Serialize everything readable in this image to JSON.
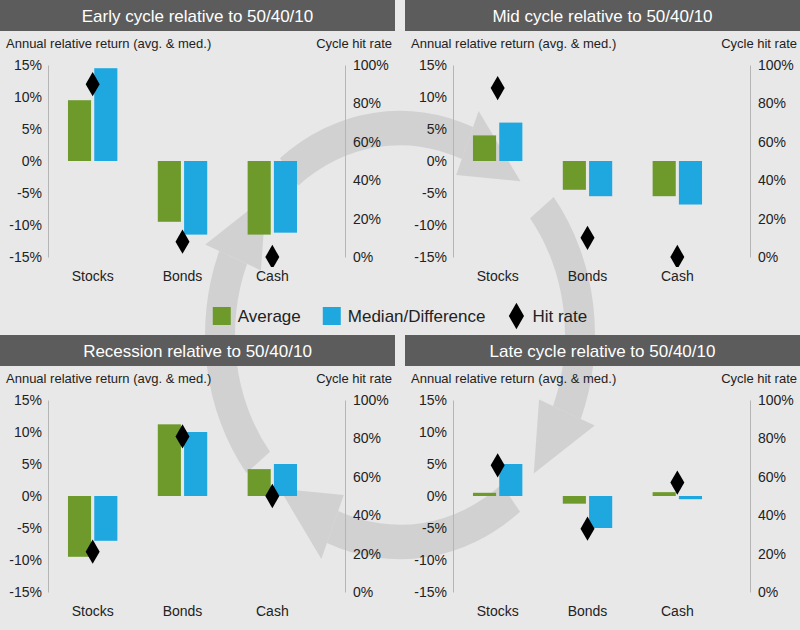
{
  "chart_data": [
    {
      "type": "bar",
      "title": "Early cycle relative to 50/40/10",
      "y_label": "Annual relative return (avg. & med.)",
      "y2_label": "Cycle hit rate",
      "categories": [
        "Stocks",
        "Bonds",
        "Cash"
      ],
      "series": [
        {
          "name": "Average",
          "color": "#6e9a2c",
          "values": [
            9.5,
            -9.5,
            -11.5
          ]
        },
        {
          "name": "Median/Difference",
          "color": "#1fa8e0",
          "values": [
            14.5,
            -11.5,
            -11.2
          ]
        },
        {
          "name": "Hit rate",
          "type": "scatter",
          "marker": "diamond",
          "axis": "y2",
          "color": "#000000",
          "values": [
            90,
            8,
            0
          ]
        }
      ],
      "ylim": [
        -15,
        15
      ],
      "yticks": [
        {
          "value": -15,
          "label": "-15%"
        },
        {
          "value": -10,
          "label": "-10%"
        },
        {
          "value": -5,
          "label": "-5%"
        },
        {
          "value": 0,
          "label": "0%"
        },
        {
          "value": 5,
          "label": "5%"
        },
        {
          "value": 10,
          "label": "10%"
        },
        {
          "value": 15,
          "label": "15%"
        }
      ],
      "y2lim": [
        0,
        100
      ],
      "y2ticks": [
        {
          "value": 0,
          "label": "0%"
        },
        {
          "value": 20,
          "label": "20%"
        },
        {
          "value": 40,
          "label": "40%"
        },
        {
          "value": 60,
          "label": "60%"
        },
        {
          "value": 80,
          "label": "80%"
        },
        {
          "value": 100,
          "label": "100%"
        }
      ]
    },
    {
      "type": "bar",
      "title": "Mid cycle relative to 50/40/10",
      "y_label": "Annual relative return (avg. & med.)",
      "y2_label": "Cycle hit rate",
      "categories": [
        "Stocks",
        "Bonds",
        "Cash"
      ],
      "series": [
        {
          "name": "Average",
          "color": "#6e9a2c",
          "values": [
            4.0,
            -4.5,
            -5.5
          ]
        },
        {
          "name": "Median/Difference",
          "color": "#1fa8e0",
          "values": [
            6.0,
            -5.5,
            -6.8
          ]
        },
        {
          "name": "Hit rate",
          "type": "scatter",
          "marker": "diamond",
          "axis": "y2",
          "color": "#000000",
          "values": [
            88,
            10,
            0
          ]
        }
      ],
      "ylim": [
        -15,
        15
      ],
      "yticks": [
        {
          "value": -15,
          "label": "-15%"
        },
        {
          "value": -10,
          "label": "-10%"
        },
        {
          "value": -5,
          "label": "-5%"
        },
        {
          "value": 0,
          "label": "0%"
        },
        {
          "value": 5,
          "label": "5%"
        },
        {
          "value": 10,
          "label": "10%"
        },
        {
          "value": 15,
          "label": "15%"
        }
      ],
      "y2lim": [
        0,
        100
      ],
      "y2ticks": [
        {
          "value": 0,
          "label": "0%"
        },
        {
          "value": 20,
          "label": "20%"
        },
        {
          "value": 40,
          "label": "40%"
        },
        {
          "value": 60,
          "label": "60%"
        },
        {
          "value": 80,
          "label": "80%"
        },
        {
          "value": 100,
          "label": "100%"
        }
      ]
    },
    {
      "type": "bar",
      "title": "Recession relative to 50/40/10",
      "y_label": "Annual relative return (avg. & med.)",
      "y2_label": "Cycle hit rate",
      "categories": [
        "Stocks",
        "Bonds",
        "Cash"
      ],
      "series": [
        {
          "name": "Average",
          "color": "#6e9a2c",
          "values": [
            -9.5,
            11.2,
            4.2
          ]
        },
        {
          "name": "Median/Difference",
          "color": "#1fa8e0",
          "values": [
            -7.0,
            10.0,
            5.0
          ]
        },
        {
          "name": "Hit rate",
          "type": "scatter",
          "marker": "diamond",
          "axis": "y2",
          "color": "#000000",
          "values": [
            21,
            81,
            50
          ]
        }
      ],
      "ylim": [
        -15,
        15
      ],
      "yticks": [
        {
          "value": -15,
          "label": "-15%"
        },
        {
          "value": -10,
          "label": "-10%"
        },
        {
          "value": -5,
          "label": "-5%"
        },
        {
          "value": 0,
          "label": "0%"
        },
        {
          "value": 5,
          "label": "5%"
        },
        {
          "value": 10,
          "label": "10%"
        },
        {
          "value": 15,
          "label": "15%"
        }
      ],
      "y2lim": [
        0,
        100
      ],
      "y2ticks": [
        {
          "value": 0,
          "label": "0%"
        },
        {
          "value": 20,
          "label": "20%"
        },
        {
          "value": 40,
          "label": "40%"
        },
        {
          "value": 60,
          "label": "60%"
        },
        {
          "value": 80,
          "label": "80%"
        },
        {
          "value": 100,
          "label": "100%"
        }
      ]
    },
    {
      "type": "bar",
      "title": "Late cycle relative to 50/40/10",
      "y_label": "Annual relative return (avg. & med.)",
      "y2_label": "Cycle hit rate",
      "categories": [
        "Stocks",
        "Bonds",
        "Cash"
      ],
      "series": [
        {
          "name": "Average",
          "color": "#6e9a2c",
          "values": [
            0.5,
            -1.2,
            0.6
          ]
        },
        {
          "name": "Median/Difference",
          "color": "#1fa8e0",
          "values": [
            5.0,
            -5.0,
            -0.5
          ]
        },
        {
          "name": "Hit rate",
          "type": "scatter",
          "marker": "diamond",
          "axis": "y2",
          "color": "#000000",
          "values": [
            66,
            33,
            57
          ]
        }
      ],
      "ylim": [
        -15,
        15
      ],
      "yticks": [
        {
          "value": -15,
          "label": "-15%"
        },
        {
          "value": -10,
          "label": "-10%"
        },
        {
          "value": -5,
          "label": "-5%"
        },
        {
          "value": 0,
          "label": "0%"
        },
        {
          "value": 5,
          "label": "5%"
        },
        {
          "value": 10,
          "label": "10%"
        },
        {
          "value": 15,
          "label": "15%"
        }
      ],
      "y2lim": [
        0,
        100
      ],
      "y2ticks": [
        {
          "value": 0,
          "label": "0%"
        },
        {
          "value": 20,
          "label": "20%"
        },
        {
          "value": 40,
          "label": "40%"
        },
        {
          "value": 60,
          "label": "60%"
        },
        {
          "value": 80,
          "label": "80%"
        },
        {
          "value": 100,
          "label": "100%"
        }
      ]
    }
  ]
}
